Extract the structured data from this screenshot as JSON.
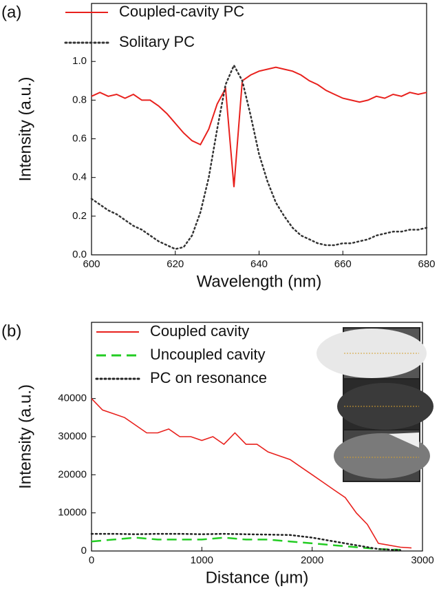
{
  "chart_data": [
    {
      "type": "line",
      "panel_label": "(a)",
      "x_label": "Wavelength (nm)",
      "y_label": "Intensity (a.u.)",
      "x": [
        600,
        602,
        604,
        606,
        608,
        610,
        612,
        614,
        616,
        618,
        620,
        622,
        624,
        626,
        628,
        630,
        632,
        634,
        636,
        638,
        640,
        642,
        644,
        646,
        648,
        650,
        652,
        654,
        656,
        658,
        660,
        662,
        664,
        666,
        668,
        670,
        672,
        674,
        676,
        678,
        680
      ],
      "series": [
        {
          "name": "Coupled-cavity PC",
          "color": "#e8201c",
          "linestyle": "solid",
          "values": [
            0.82,
            0.84,
            0.82,
            0.83,
            0.81,
            0.83,
            0.8,
            0.8,
            0.77,
            0.73,
            0.68,
            0.63,
            0.59,
            0.57,
            0.65,
            0.78,
            0.86,
            0.35,
            0.9,
            0.93,
            0.95,
            0.96,
            0.97,
            0.96,
            0.95,
            0.93,
            0.9,
            0.88,
            0.85,
            0.83,
            0.81,
            0.8,
            0.79,
            0.8,
            0.82,
            0.81,
            0.83,
            0.82,
            0.84,
            0.83,
            0.84
          ]
        },
        {
          "name": "Solitary PC",
          "color": "#333333",
          "linestyle": "dotted",
          "values": [
            0.29,
            0.26,
            0.23,
            0.21,
            0.18,
            0.15,
            0.13,
            0.1,
            0.07,
            0.05,
            0.03,
            0.04,
            0.1,
            0.22,
            0.4,
            0.65,
            0.88,
            0.98,
            0.9,
            0.72,
            0.52,
            0.38,
            0.27,
            0.2,
            0.14,
            0.1,
            0.08,
            0.06,
            0.05,
            0.05,
            0.06,
            0.06,
            0.07,
            0.08,
            0.1,
            0.11,
            0.12,
            0.12,
            0.13,
            0.13,
            0.14
          ]
        }
      ],
      "xlim": [
        600,
        680
      ],
      "xticks": [
        600,
        620,
        640,
        660,
        680
      ],
      "ylim": [
        0,
        1.3
      ],
      "yticks": [
        {
          "value": 0,
          "label": "0.0"
        },
        0.2,
        0.4,
        0.6,
        0.8,
        {
          "value": 1,
          "label": "1.0"
        }
      ],
      "grid": false
    },
    {
      "type": "line",
      "panel_label": "(b)",
      "x_label": "Distance (μm)",
      "y_label": "Intensity (a.u.)",
      "series": [
        {
          "name": "Coupled cavity",
          "color": "#e8201c",
          "linestyle": "solid",
          "x": [
            0,
            100,
            200,
            300,
            400,
            500,
            600,
            700,
            800,
            900,
            1000,
            1100,
            1200,
            1300,
            1400,
            1500,
            1600,
            1700,
            1800,
            1900,
            2000,
            2100,
            2200,
            2300,
            2400,
            2500,
            2600,
            2700,
            2800,
            2900
          ],
          "values": [
            40000,
            37000,
            36000,
            35000,
            33000,
            31000,
            31000,
            32000,
            30000,
            30000,
            29000,
            30000,
            28000,
            31000,
            28000,
            28000,
            26000,
            25000,
            24000,
            22000,
            20000,
            18000,
            16000,
            14000,
            10000,
            7000,
            2000,
            1500,
            1000,
            800
          ]
        },
        {
          "name": "Uncoupled cavity",
          "color": "#22cc22",
          "linestyle": "dashed",
          "x": [
            0,
            200,
            400,
            600,
            800,
            1000,
            1200,
            1400,
            1600,
            1800,
            2000,
            2200,
            2400,
            2600,
            2800
          ],
          "values": [
            2500,
            3000,
            3500,
            3000,
            3000,
            3000,
            3500,
            3000,
            3000,
            2500,
            2000,
            1500,
            1000,
            500,
            300
          ]
        },
        {
          "name": "PC on resonance",
          "color": "#222222",
          "linestyle": "dotted",
          "x": [
            0,
            200,
            400,
            600,
            800,
            1000,
            1200,
            1400,
            1600,
            1800,
            2000,
            2200,
            2400,
            2600,
            2800
          ],
          "values": [
            4500,
            4500,
            4400,
            4500,
            4500,
            4400,
            4500,
            4400,
            4300,
            4200,
            3500,
            2500,
            1500,
            500,
            200
          ]
        }
      ],
      "xlim": [
        0,
        3000
      ],
      "xticks": [
        0,
        1000,
        2000,
        3000
      ],
      "ylim": [
        0,
        60000
      ],
      "yticks": [
        0,
        10000,
        20000,
        30000,
        40000
      ],
      "grid": false
    }
  ]
}
